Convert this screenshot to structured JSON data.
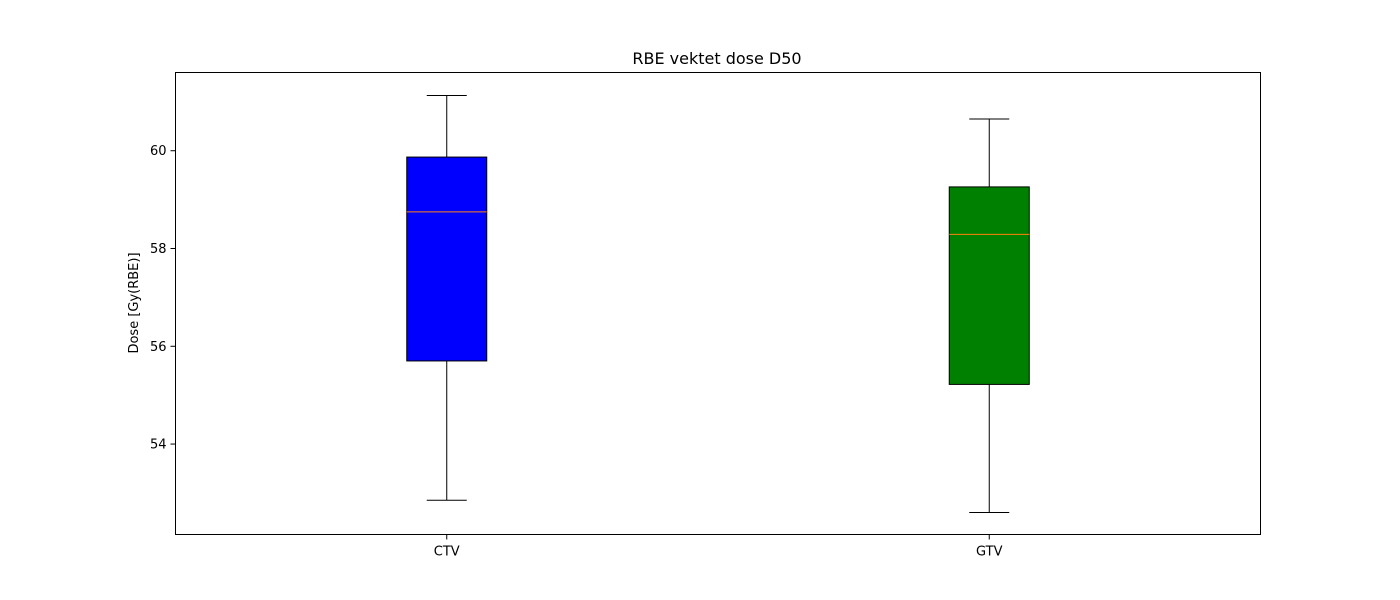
{
  "chart_data": {
    "type": "box",
    "title": "RBE vektet dose D50",
    "xlabel": "",
    "ylabel": "Dose [Gy(RBE)]",
    "ylim": [
      52.15,
      61.6
    ],
    "yticks": [
      54,
      56,
      58,
      60
    ],
    "ytick_labels": [
      "54",
      "56",
      "58",
      "60"
    ],
    "categories": [
      "CTV",
      "GTV"
    ],
    "boxes": [
      {
        "category": "CTV",
        "whisker_low": 52.85,
        "q1": 55.7,
        "median": 58.75,
        "q3": 59.87,
        "whisker_high": 61.13,
        "color": "#0000ff"
      },
      {
        "category": "GTV",
        "whisker_low": 52.6,
        "q1": 55.22,
        "median": 58.29,
        "q3": 59.26,
        "whisker_high": 60.65,
        "color": "#008000"
      }
    ],
    "median_color": "#ff7f0e",
    "grid": false
  }
}
